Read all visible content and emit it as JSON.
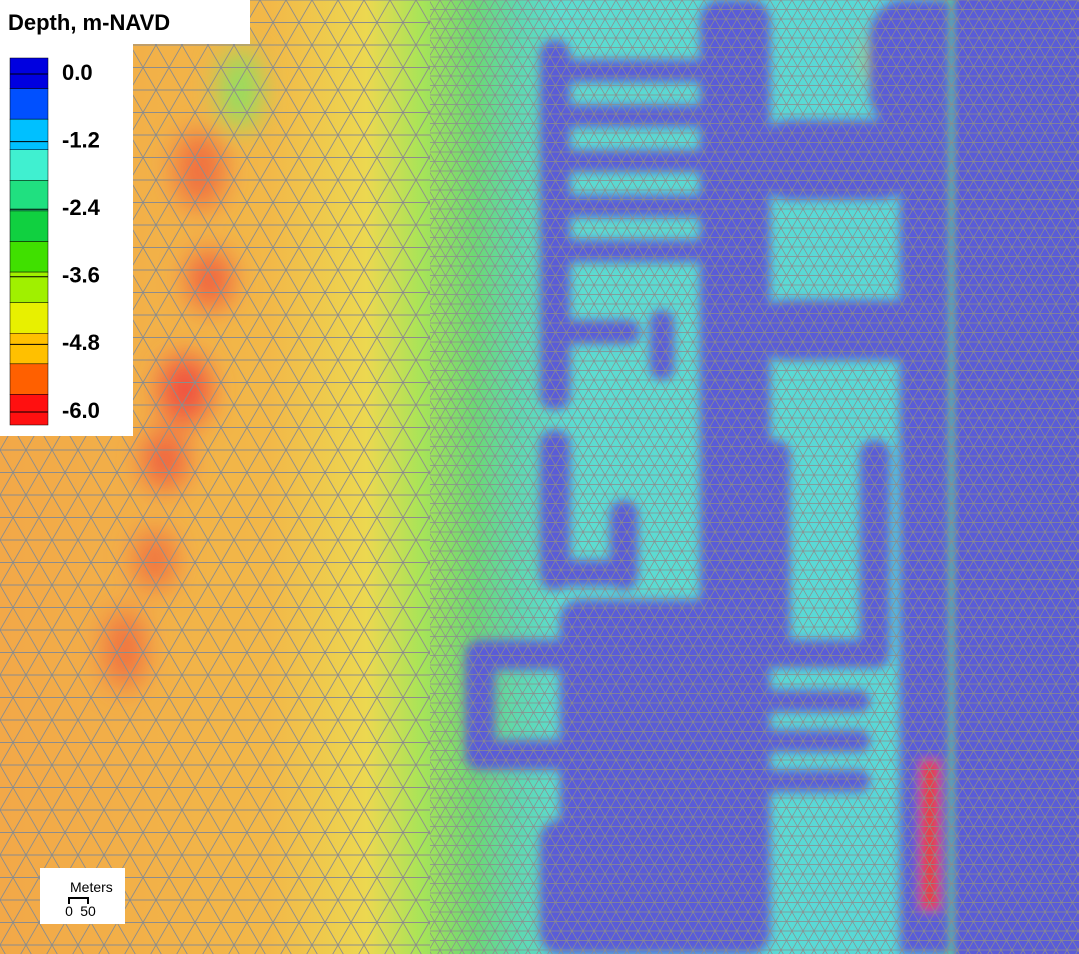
{
  "legend": {
    "title": "Depth, m-NAVD",
    "labels": [
      "0.0",
      "-1.2",
      "-2.4",
      "-3.6",
      "-4.8",
      "-6.0"
    ],
    "colors": [
      "#0000e0",
      "#0050ff",
      "#00c0ff",
      "#40f0d0",
      "#20e080",
      "#10d040",
      "#40e000",
      "#a0f000",
      "#e8f000",
      "#ffc000",
      "#ff6000",
      "#ff1010"
    ]
  },
  "scale_bar": {
    "unit": "Meters",
    "start": "0",
    "end": "50"
  }
}
